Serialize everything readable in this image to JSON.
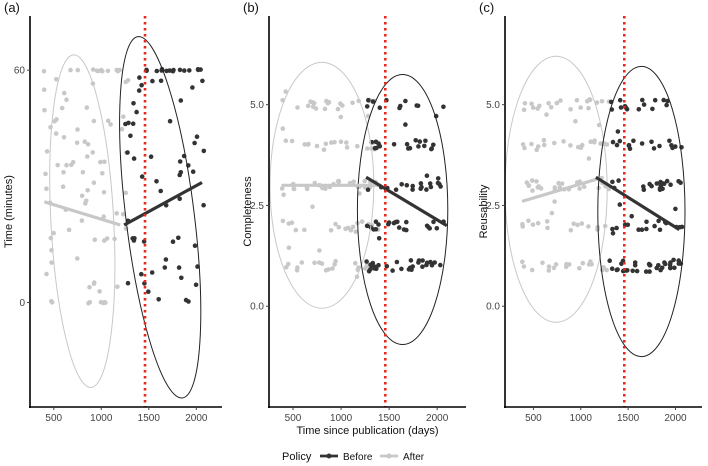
{
  "figure": {
    "shared_xlabel": "Time since publication (days)",
    "policy_line_x": 1460
  },
  "legend": {
    "title": "Policy",
    "entries": [
      {
        "label": "Before",
        "color": "#333333"
      },
      {
        "label": "After",
        "color": "#c8c8c8"
      }
    ]
  },
  "colors": {
    "before": "#333333",
    "after": "#c8c8c8",
    "policy_line": "#e8281e"
  },
  "chart_data": [
    {
      "type": "scatter",
      "panel_label": "(a)",
      "title": "",
      "xlabel": "",
      "ylabel": "Time (minutes)",
      "xlim": [
        250,
        2270
      ],
      "ylim": [
        -27,
        74
      ],
      "xticks": [
        500,
        1000,
        1500,
        2000
      ],
      "yticks": [
        0,
        60
      ],
      "ytick_labels": [
        "0",
        "60"
      ],
      "series": [
        {
          "name": "After",
          "color": "#c8c8c8",
          "trend": {
            "x": [
              400,
              1200
            ],
            "y": [
              26,
              20
            ]
          },
          "ellipse": {
            "cx": 800,
            "cy": 21,
            "rx": 330,
            "ry": 43,
            "rotation_deg": -3
          },
          "clusters": [
            {
              "x_range": [
                380,
                1300
              ],
              "y": 60,
              "n": 12,
              "jitter": 0.3
            },
            {
              "x_range": [
                380,
                1250
              ],
              "y": 0,
              "n": 8,
              "jitter": 0.3
            },
            {
              "x_range": [
                380,
                1300
              ],
              "y_range": [
                1,
                58
              ],
              "n": 70
            }
          ]
        },
        {
          "name": "Before",
          "color": "#333333",
          "trend": {
            "x": [
              1240,
              2060
            ],
            "y": [
              20,
              31
            ]
          },
          "ellipse": {
            "cx": 1620,
            "cy": 22,
            "rx": 360,
            "ry": 47,
            "rotation_deg": -7
          },
          "clusters": [
            {
              "x_range": [
                1440,
                2060
              ],
              "y": 60,
              "n": 16,
              "jitter": 0.3
            },
            {
              "x_range": [
                1250,
                2080
              ],
              "y_range": [
                0,
                59
              ],
              "n": 55
            }
          ]
        }
      ]
    },
    {
      "type": "scatter",
      "panel_label": "(b)",
      "title": "",
      "xlabel": "Time since publication (days)",
      "ylabel": "Completeness",
      "xlim": [
        250,
        2300
      ],
      "ylim": [
        -2.5,
        7.2
      ],
      "xticks": [
        500,
        1000,
        1500,
        2000
      ],
      "yticks": [
        0,
        2.5,
        5
      ],
      "ytick_labels": [
        "0.0",
        "2.5",
        "5.0"
      ],
      "series": [
        {
          "name": "After",
          "color": "#c8c8c8",
          "trend": {
            "x": [
              380,
              1420
            ],
            "y": [
              3.0,
              3.0
            ]
          },
          "ellipse": {
            "cx": 800,
            "cy": 3.0,
            "rx": 540,
            "ry": 3.05,
            "rotation_deg": 0
          },
          "clusters": [
            {
              "x_range": [
                380,
                1420
              ],
              "y": 5,
              "n": 20,
              "jitter": 0.12
            },
            {
              "x_range": [
                380,
                1420
              ],
              "y": 4,
              "n": 18,
              "jitter": 0.12
            },
            {
              "x_range": [
                380,
                1420
              ],
              "y": 3,
              "n": 26,
              "jitter": 0.12
            },
            {
              "x_range": [
                380,
                1420
              ],
              "y": 2,
              "n": 16,
              "jitter": 0.12
            },
            {
              "x_range": [
                380,
                1420
              ],
              "y": 1,
              "n": 18,
              "jitter": 0.12
            },
            {
              "x_range": [
                380,
                1420
              ],
              "y_range": [
                0.6,
                5.4
              ],
              "n": 14
            }
          ]
        },
        {
          "name": "Before",
          "color": "#333333",
          "trend": {
            "x": [
              1260,
              2100
            ],
            "y": [
              3.2,
              2.0
            ]
          },
          "ellipse": {
            "cx": 1640,
            "cy": 2.4,
            "rx": 470,
            "ry": 3.35,
            "rotation_deg": 0
          },
          "clusters": [
            {
              "x_range": [
                1260,
                2080
              ],
              "y": 5,
              "n": 10,
              "jitter": 0.12
            },
            {
              "x_range": [
                1260,
                2080
              ],
              "y": 4,
              "n": 18,
              "jitter": 0.12
            },
            {
              "x_range": [
                1260,
                2080
              ],
              "y": 3,
              "n": 14,
              "jitter": 0.12
            },
            {
              "x_range": [
                1260,
                2080
              ],
              "y": 2,
              "n": 20,
              "jitter": 0.12
            },
            {
              "x_range": [
                1260,
                2080
              ],
              "y": 1,
              "n": 30,
              "jitter": 0.15
            },
            {
              "x_range": [
                1260,
                2080
              ],
              "y_range": [
                0.7,
                5.3
              ],
              "n": 10
            }
          ]
        }
      ]
    },
    {
      "type": "scatter",
      "panel_label": "(c)",
      "title": "",
      "xlabel": "",
      "ylabel": "Reusability",
      "xlim": [
        200,
        2280
      ],
      "ylim": [
        -2.5,
        7.2
      ],
      "xticks": [
        500,
        1000,
        1500,
        2000
      ],
      "yticks": [
        0,
        2.5,
        5
      ],
      "ytick_labels": [
        "0.0",
        "2.5",
        "5.0"
      ],
      "series": [
        {
          "name": "After",
          "color": "#c8c8c8",
          "trend": {
            "x": [
              380,
              1240
            ],
            "y": [
              2.6,
              3.2
            ]
          },
          "ellipse": {
            "cx": 740,
            "cy": 2.9,
            "rx": 540,
            "ry": 3.3,
            "rotation_deg": 0
          },
          "clusters": [
            {
              "x_range": [
                380,
                1300
              ],
              "y": 5,
              "n": 18,
              "jitter": 0.12
            },
            {
              "x_range": [
                380,
                1300
              ],
              "y": 4,
              "n": 18,
              "jitter": 0.12
            },
            {
              "x_range": [
                380,
                1300
              ],
              "y": 3,
              "n": 24,
              "jitter": 0.12
            },
            {
              "x_range": [
                380,
                1300
              ],
              "y": 2,
              "n": 14,
              "jitter": 0.12
            },
            {
              "x_range": [
                380,
                1300
              ],
              "y": 1,
              "n": 18,
              "jitter": 0.12
            },
            {
              "x_range": [
                380,
                1300
              ],
              "y_range": [
                0.6,
                5.4
              ],
              "n": 14
            }
          ]
        },
        {
          "name": "Before",
          "color": "#333333",
          "trend": {
            "x": [
              1160,
              2040
            ],
            "y": [
              3.2,
              1.9
            ]
          },
          "ellipse": {
            "cx": 1640,
            "cy": 2.35,
            "rx": 460,
            "ry": 3.6,
            "rotation_deg": 0
          },
          "clusters": [
            {
              "x_range": [
                1300,
                2080
              ],
              "y": 5,
              "n": 14,
              "jitter": 0.12
            },
            {
              "x_range": [
                1300,
                2080
              ],
              "y": 4,
              "n": 14,
              "jitter": 0.12
            },
            {
              "x_range": [
                1300,
                2080
              ],
              "y": 3,
              "n": 16,
              "jitter": 0.12
            },
            {
              "x_range": [
                1300,
                2080
              ],
              "y": 2,
              "n": 16,
              "jitter": 0.12
            },
            {
              "x_range": [
                1300,
                2080
              ],
              "y": 1,
              "n": 32,
              "jitter": 0.15
            },
            {
              "x_range": [
                1300,
                2080
              ],
              "y_range": [
                0.7,
                5.3
              ],
              "n": 12
            }
          ]
        }
      ]
    }
  ]
}
